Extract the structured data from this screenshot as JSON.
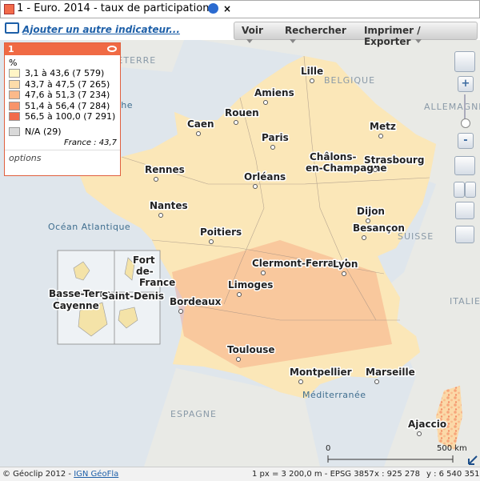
{
  "header": {
    "title": "1 - Euro. 2014 - taux de participation",
    "close": "×",
    "add_indicator": "Ajouter un autre indicateur..."
  },
  "toolbar": [
    "Voir",
    "Rechercher",
    "Imprimer / Exporter"
  ],
  "legend": {
    "title": "1",
    "unit": "%",
    "classes": [
      {
        "label": "3,1 à 43,6 (7 579)",
        "color": "#fff5c6"
      },
      {
        "label": "43,7 à 47,5 (7 265)",
        "color": "#fddcaa"
      },
      {
        "label": "47,6 à 51,3 (7 234)",
        "color": "#fbb98a"
      },
      {
        "label": "51,4 à 56,4 (7 284)",
        "color": "#f8946a"
      },
      {
        "label": "56,5 à 100,0 (7 291)",
        "color": "#f26b4a"
      },
      {
        "label": "N/A (29)",
        "color": "#d9d9d9"
      }
    ],
    "average": "France : 43,7",
    "options": "options"
  },
  "map_labels": {
    "geo": [
      "ANGLETERRE",
      "BELGIQUE",
      "ALLEMAGNE",
      "SUISSE",
      "ITALIE",
      "ESPAGNE"
    ],
    "seas": [
      "Manche",
      "Océan Atlantique",
      "Méditerranée"
    ],
    "cities": [
      [
        "Lille"
      ],
      [
        "Amiens"
      ],
      [
        "Rouen"
      ],
      [
        "Caen"
      ],
      [
        "Paris"
      ],
      [
        "Metz"
      ],
      [
        "Châlons-",
        "en-Champagne"
      ],
      [
        "Strasbourg"
      ],
      [
        "Rennes"
      ],
      [
        "Orléans"
      ],
      [
        "Nantes"
      ],
      [
        "Dijon"
      ],
      [
        "Besançon"
      ],
      [
        "Poitiers"
      ],
      [
        "Clermont-Ferrand"
      ],
      [
        "Lyon"
      ],
      [
        "Limoges"
      ],
      [
        "Bordeaux"
      ],
      [
        "Toulouse"
      ],
      [
        "Montpellier"
      ],
      [
        "Marseille"
      ],
      [
        "Ajaccio"
      ],
      [
        "Fort",
        "de-",
        "France"
      ],
      [
        "Basse-Terre"
      ],
      [
        "Saint-Denis"
      ],
      [
        "Cayenne"
      ]
    ]
  },
  "controls": {
    "zoom_in": "+",
    "zoom_out": "-"
  },
  "scale": {
    "start": "0",
    "end": "500 km"
  },
  "footer": {
    "copyright": "© Géoclip 2012 -",
    "source": "IGN GéoFla",
    "resolution": "1 px = 3 200,0 m - EPSG 3857",
    "x": "x : 925 278",
    "y": "y : 6 540 351"
  }
}
